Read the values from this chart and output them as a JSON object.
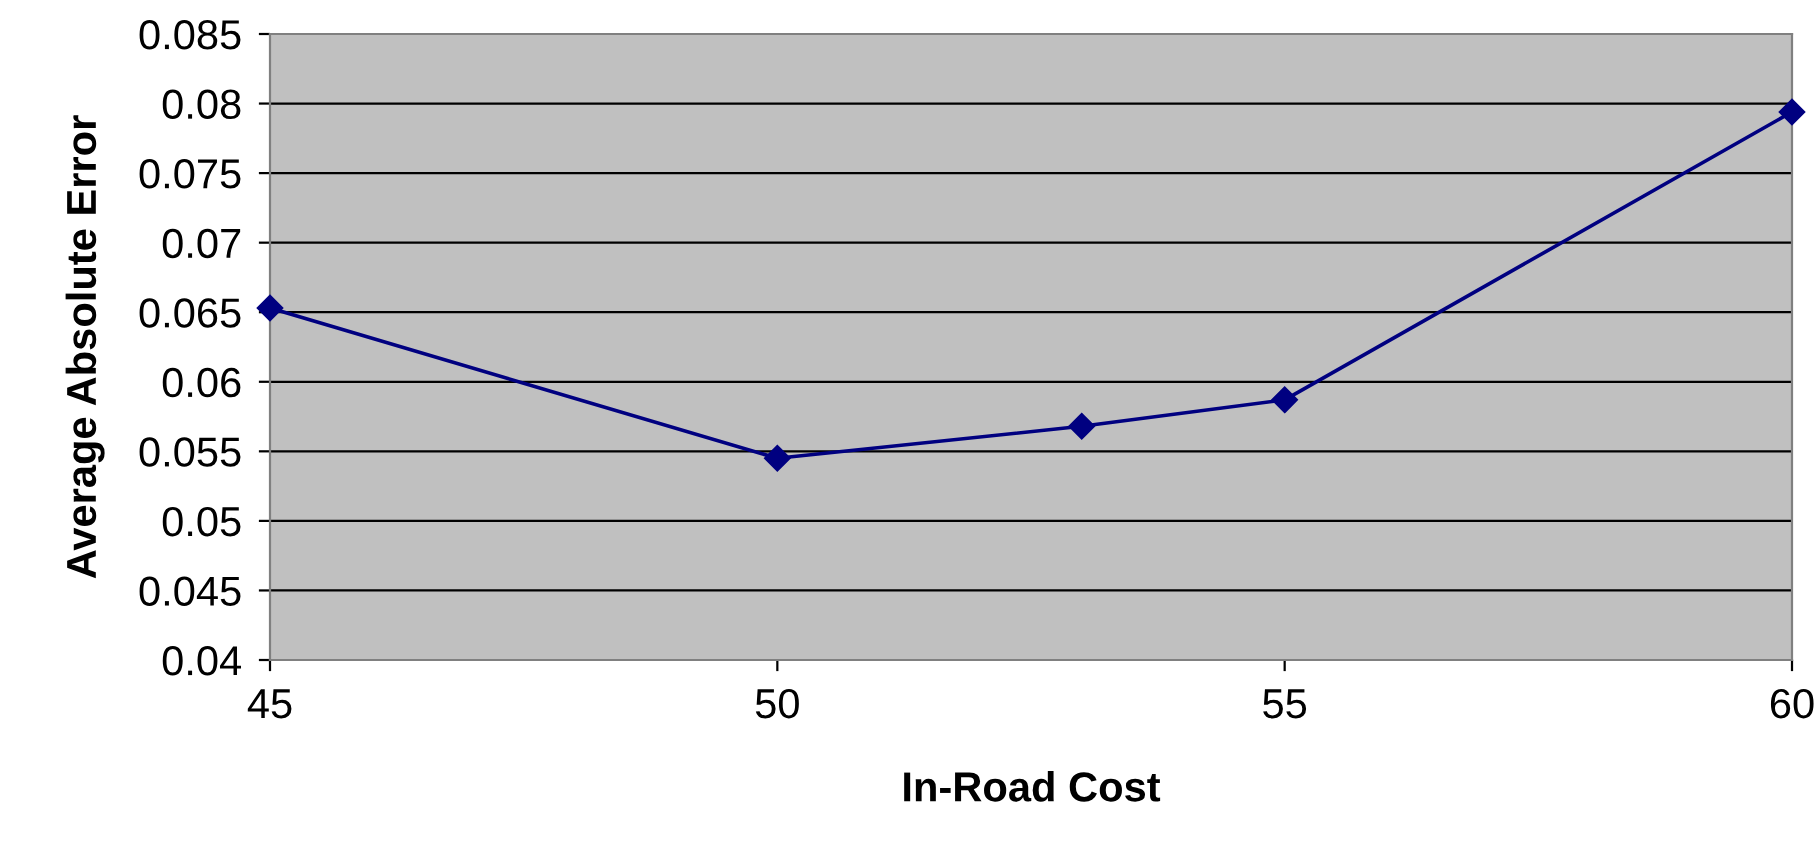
{
  "chart_data": {
    "type": "line",
    "xlabel": "In-Road Cost",
    "ylabel": "Average Absolute Error",
    "x": [
      45,
      50,
      53,
      55,
      60
    ],
    "series": [
      {
        "color": "#000080",
        "values": [
          0.0653,
          0.0545,
          0.0568,
          0.0587,
          0.0794
        ]
      }
    ],
    "xlim": [
      45,
      60
    ],
    "xticks": [
      45,
      50,
      55,
      60
    ],
    "ylim": [
      0.04,
      0.085
    ],
    "yticks": [
      0.04,
      0.045,
      0.05,
      0.055,
      0.06,
      0.065,
      0.07,
      0.075,
      0.08,
      0.085
    ],
    "grid": "y",
    "marker": "diamond",
    "line_style": "solid",
    "legend": false
  }
}
